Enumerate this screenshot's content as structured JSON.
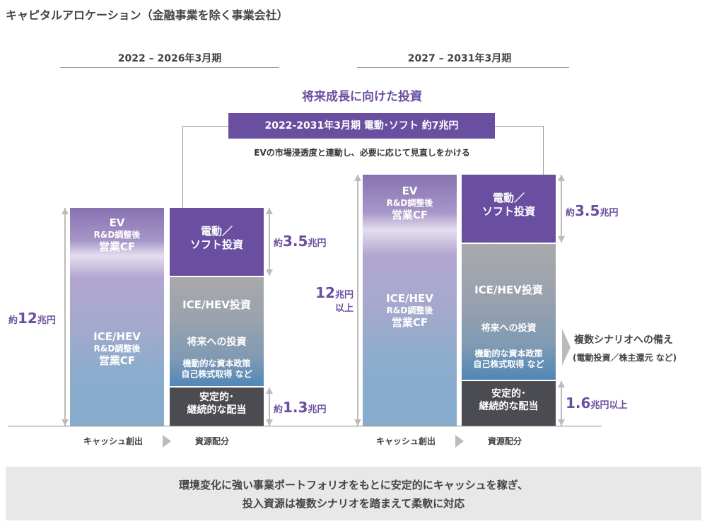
{
  "title": "キャピタルアロケーション（金融事業を除く事業会社）",
  "periods": [
    "2022 – 2026年3月期",
    "2027 – 2031年3月期"
  ],
  "future": {
    "heading": "将来成長に向けた投資",
    "box": "2022-2031年3月期 電動･ソフト 約7兆円",
    "note": "EVの市場浸透度と連動し、必要に応じて見直しをかける"
  },
  "left": {
    "total": {
      "prefix": "約",
      "num": "12",
      "unit": "兆円"
    },
    "cf_ev": [
      "EV",
      "R&D調整後",
      "営業CF"
    ],
    "cf_ice": [
      "ICE/HEV",
      "R&D調整後",
      "営業CF"
    ],
    "alloc_ev": [
      "電動／",
      "ソフト投資"
    ],
    "alloc_mid": [
      "ICE/HEV投資",
      "将来への投資",
      "機動的な資本政策",
      "自己株式取得 など"
    ],
    "alloc_div": [
      "安定的･",
      "継続的な配当"
    ],
    "ev_amt": {
      "prefix": "約",
      "num": "3.5",
      "unit": "兆円"
    },
    "div_amt": {
      "prefix": "約",
      "num": "1.3",
      "unit": "兆円"
    },
    "axis": [
      "キャッシュ創出",
      "資源配分"
    ]
  },
  "right": {
    "total": {
      "num": "12",
      "unit": "兆円",
      "suffix": "以上"
    },
    "cf_ev": [
      "EV",
      "R&D調整後",
      "営業CF"
    ],
    "cf_ice": [
      "ICE/HEV",
      "R&D調整後",
      "営業CF"
    ],
    "alloc_ev": [
      "電動／",
      "ソフト投資"
    ],
    "alloc_mid": [
      "ICE/HEV投資",
      "将来への投資",
      "機動的な資本政策",
      "自己株式取得 など"
    ],
    "alloc_div": [
      "安定的･",
      "継続的な配当"
    ],
    "ev_amt": {
      "prefix": "約",
      "num": "3.5",
      "unit": "兆円"
    },
    "div_amt": {
      "num": "1.6",
      "unit": "兆円以上"
    },
    "scenario": [
      "複数シナリオへの備え",
      "(電動投資／株主還元 など)"
    ],
    "axis": [
      "キャッシュ創出",
      "資源配分"
    ]
  },
  "footer": [
    "環境変化に強い事業ポートフォリオをもとに安定的にキャッシュを稼ぎ、",
    "投入資源は複数シナリオを踏まえて柔軟に対応"
  ],
  "colors": {
    "purple": "#6a4fa0",
    "dark": "#4b4c51"
  }
}
